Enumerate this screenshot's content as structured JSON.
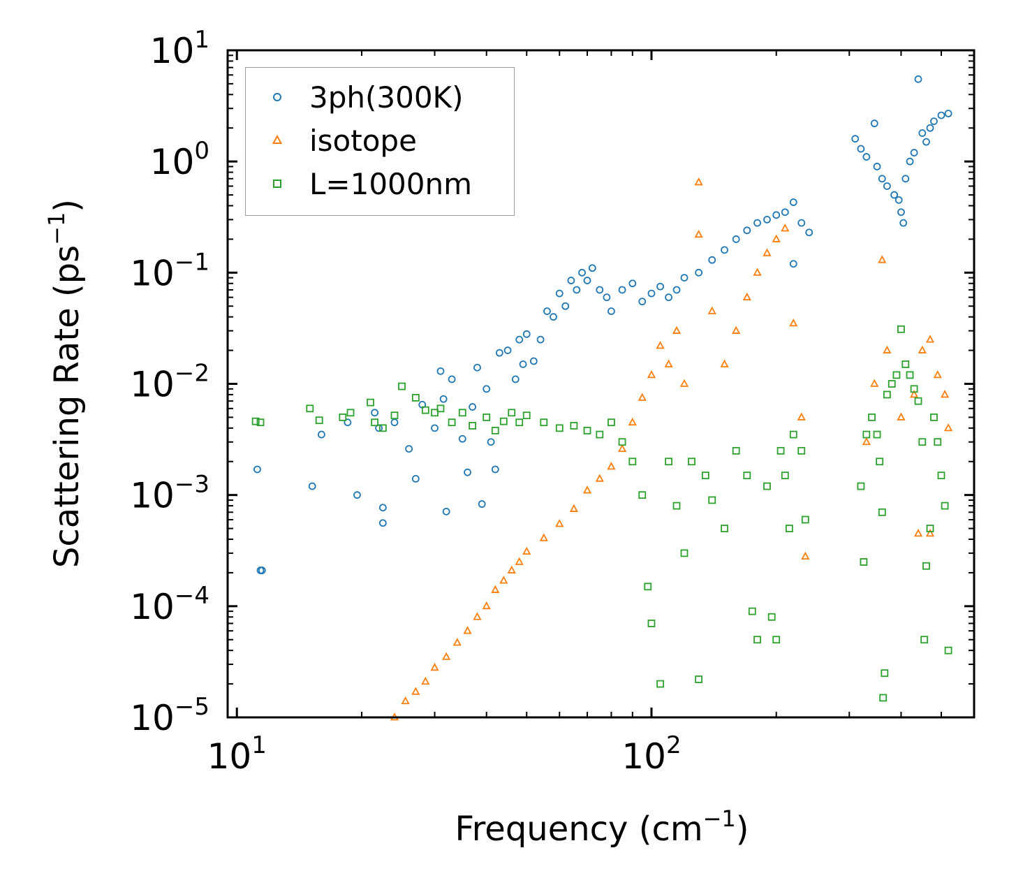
{
  "chart_data": {
    "type": "scatter",
    "title": "",
    "xlabel": "Frequency (cm",
    "xlabel_sup": "−1",
    "xlabel_tail": ")",
    "ylabel": "Scattering Rate (ps",
    "ylabel_sup": "−1",
    "ylabel_tail": ")",
    "x_scale": "log",
    "y_scale": "log",
    "xlim": [
      9.5,
      600
    ],
    "ylim": [
      1e-05,
      10
    ],
    "grid": false,
    "legend_position": "top-left",
    "x_ticks": [
      {
        "value": 10,
        "base": "10",
        "exp": "1"
      },
      {
        "value": 100,
        "base": "10",
        "exp": "2"
      }
    ],
    "y_ticks": [
      {
        "value": 10,
        "base": "10",
        "exp": "1"
      },
      {
        "value": 1,
        "base": "10",
        "exp": "0"
      },
      {
        "value": 0.1,
        "base": "10",
        "exp": "−1"
      },
      {
        "value": 0.01,
        "base": "10",
        "exp": "−2"
      },
      {
        "value": 0.001,
        "base": "10",
        "exp": "−3"
      },
      {
        "value": 0.0001,
        "base": "10",
        "exp": "−4"
      },
      {
        "value": 1e-05,
        "base": "10",
        "exp": "−5"
      }
    ],
    "series": [
      {
        "name": "3ph(300K)",
        "marker": "circle",
        "color": "#1f77b4",
        "points": [
          [
            11.2,
            0.0017
          ],
          [
            11.4,
            0.00021
          ],
          [
            11.5,
            0.00021
          ],
          [
            15.2,
            0.0012
          ],
          [
            16.0,
            0.0035
          ],
          [
            18.5,
            0.0045
          ],
          [
            19.5,
            0.001
          ],
          [
            21.5,
            0.0055
          ],
          [
            22.0,
            0.004
          ],
          [
            22.5,
            0.00077
          ],
          [
            22.5,
            0.00056
          ],
          [
            24.0,
            0.0045
          ],
          [
            26.0,
            0.0026
          ],
          [
            27.0,
            0.0014
          ],
          [
            28.0,
            0.0065
          ],
          [
            30.0,
            0.004
          ],
          [
            31.0,
            0.013
          ],
          [
            31.5,
            0.0073
          ],
          [
            32.0,
            0.00071
          ],
          [
            33.0,
            0.011
          ],
          [
            35.0,
            0.0032
          ],
          [
            36.0,
            0.0016
          ],
          [
            37.0,
            0.0062
          ],
          [
            38.0,
            0.014
          ],
          [
            39.0,
            0.00083
          ],
          [
            40.0,
            0.009
          ],
          [
            41.0,
            0.003
          ],
          [
            42.0,
            0.0017
          ],
          [
            43.0,
            0.019
          ],
          [
            45.0,
            0.02
          ],
          [
            47.0,
            0.011
          ],
          [
            48.0,
            0.025
          ],
          [
            49.0,
            0.015
          ],
          [
            50.0,
            0.028
          ],
          [
            52.0,
            0.016
          ],
          [
            54.0,
            0.025
          ],
          [
            56.0,
            0.045
          ],
          [
            58.0,
            0.04
          ],
          [
            60.0,
            0.065
          ],
          [
            62.0,
            0.05
          ],
          [
            64.0,
            0.085
          ],
          [
            66.0,
            0.07
          ],
          [
            68.0,
            0.1
          ],
          [
            70.0,
            0.085
          ],
          [
            72.0,
            0.11
          ],
          [
            75.0,
            0.07
          ],
          [
            78.0,
            0.06
          ],
          [
            80.0,
            0.045
          ],
          [
            85.0,
            0.07
          ],
          [
            90.0,
            0.08
          ],
          [
            95.0,
            0.055
          ],
          [
            100.0,
            0.065
          ],
          [
            105.0,
            0.075
          ],
          [
            110.0,
            0.06
          ],
          [
            115.0,
            0.07
          ],
          [
            120.0,
            0.09
          ],
          [
            130.0,
            0.1
          ],
          [
            140.0,
            0.13
          ],
          [
            150.0,
            0.16
          ],
          [
            160.0,
            0.2
          ],
          [
            170.0,
            0.24
          ],
          [
            180.0,
            0.28
          ],
          [
            190.0,
            0.3
          ],
          [
            200.0,
            0.33
          ],
          [
            210.0,
            0.35
          ],
          [
            220.0,
            0.43
          ],
          [
            230.0,
            0.28
          ],
          [
            240.0,
            0.23
          ],
          [
            220.0,
            0.12
          ],
          [
            310.0,
            1.6
          ],
          [
            320.0,
            1.3
          ],
          [
            330.0,
            1.1
          ],
          [
            345.0,
            2.2
          ],
          [
            350.0,
            0.9
          ],
          [
            360.0,
            0.7
          ],
          [
            370.0,
            0.6
          ],
          [
            385.0,
            0.5
          ],
          [
            395.0,
            0.45
          ],
          [
            400.0,
            0.35
          ],
          [
            405.0,
            0.28
          ],
          [
            410.0,
            0.7
          ],
          [
            420.0,
            1.0
          ],
          [
            430.0,
            1.2
          ],
          [
            440.0,
            5.5
          ],
          [
            450.0,
            1.8
          ],
          [
            460.0,
            1.5
          ],
          [
            470.0,
            2.0
          ],
          [
            480.0,
            2.3
          ],
          [
            500.0,
            2.6
          ],
          [
            520.0,
            2.7
          ]
        ]
      },
      {
        "name": "isotope",
        "marker": "triangle",
        "color": "#ff7f0e",
        "points": [
          [
            24.0,
            1e-05
          ],
          [
            25.5,
            1.4e-05
          ],
          [
            27.0,
            1.7e-05
          ],
          [
            28.5,
            2.1e-05
          ],
          [
            30.0,
            2.8e-05
          ],
          [
            32.0,
            3.5e-05
          ],
          [
            34.0,
            4.7e-05
          ],
          [
            36.0,
            6e-05
          ],
          [
            38.0,
            8e-05
          ],
          [
            40.0,
            0.0001
          ],
          [
            42.0,
            0.00014
          ],
          [
            44.0,
            0.00017
          ],
          [
            46.0,
            0.00021
          ],
          [
            48.0,
            0.00025
          ],
          [
            50.0,
            0.00031
          ],
          [
            55.0,
            0.00041
          ],
          [
            60.0,
            0.00055
          ],
          [
            65.0,
            0.00075
          ],
          [
            70.0,
            0.0011
          ],
          [
            75.0,
            0.0014
          ],
          [
            80.0,
            0.0018
          ],
          [
            85.0,
            0.0026
          ],
          [
            90.0,
            0.0045
          ],
          [
            95.0,
            0.0075
          ],
          [
            100.0,
            0.012
          ],
          [
            105.0,
            0.022
          ],
          [
            110.0,
            0.015
          ],
          [
            115.0,
            0.03
          ],
          [
            120.0,
            0.01
          ],
          [
            130.0,
            0.65
          ],
          [
            130.0,
            0.22
          ],
          [
            140.0,
            0.045
          ],
          [
            150.0,
            0.015
          ],
          [
            160.0,
            0.03
          ],
          [
            170.0,
            0.06
          ],
          [
            180.0,
            0.1
          ],
          [
            190.0,
            0.15
          ],
          [
            200.0,
            0.2
          ],
          [
            210.0,
            0.25
          ],
          [
            220.0,
            0.035
          ],
          [
            230.0,
            0.005
          ],
          [
            235.0,
            0.00028
          ],
          [
            330.0,
            0.003
          ],
          [
            345.0,
            0.01
          ],
          [
            360.0,
            0.13
          ],
          [
            370.0,
            0.02
          ],
          [
            400.0,
            0.005
          ],
          [
            430.0,
            0.008
          ],
          [
            450.0,
            0.02
          ],
          [
            470.0,
            0.025
          ],
          [
            490.0,
            0.012
          ],
          [
            510.0,
            0.008
          ],
          [
            520.0,
            0.004
          ],
          [
            440.0,
            0.00045
          ],
          [
            470.0,
            0.00045
          ]
        ]
      },
      {
        "name": "L=1000nm",
        "marker": "square",
        "color": "#2ca02c",
        "points": [
          [
            11.1,
            0.0046
          ],
          [
            11.4,
            0.0045
          ],
          [
            15.0,
            0.006
          ],
          [
            15.8,
            0.0047
          ],
          [
            18.0,
            0.005
          ],
          [
            18.8,
            0.0055
          ],
          [
            21.0,
            0.0068
          ],
          [
            21.5,
            0.0045
          ],
          [
            22.5,
            0.004
          ],
          [
            24.0,
            0.0052
          ],
          [
            25.0,
            0.0095
          ],
          [
            27.0,
            0.0075
          ],
          [
            28.5,
            0.0058
          ],
          [
            30.0,
            0.0055
          ],
          [
            31.0,
            0.006
          ],
          [
            33.0,
            0.0045
          ],
          [
            35.0,
            0.0055
          ],
          [
            37.0,
            0.0042
          ],
          [
            40.0,
            0.005
          ],
          [
            42.0,
            0.0038
          ],
          [
            44.0,
            0.0046
          ],
          [
            46.0,
            0.0055
          ],
          [
            48.0,
            0.0045
          ],
          [
            50.0,
            0.0052
          ],
          [
            55.0,
            0.0045
          ],
          [
            60.0,
            0.004
          ],
          [
            65.0,
            0.0042
          ],
          [
            70.0,
            0.0038
          ],
          [
            75.0,
            0.0035
          ],
          [
            80.0,
            0.0045
          ],
          [
            85.0,
            0.003
          ],
          [
            90.0,
            0.002
          ],
          [
            95.0,
            0.001
          ],
          [
            98.0,
            0.00015
          ],
          [
            100.0,
            7e-05
          ],
          [
            105.0,
            2e-05
          ],
          [
            110.0,
            0.002
          ],
          [
            115.0,
            0.0008
          ],
          [
            120.0,
            0.0003
          ],
          [
            125.0,
            0.002
          ],
          [
            130.0,
            2.2e-05
          ],
          [
            135.0,
            0.0015
          ],
          [
            140.0,
            0.0009
          ],
          [
            150.0,
            0.0005
          ],
          [
            160.0,
            0.0025
          ],
          [
            170.0,
            0.0015
          ],
          [
            175.0,
            9e-05
          ],
          [
            180.0,
            5e-05
          ],
          [
            190.0,
            0.0012
          ],
          [
            195.0,
            8e-05
          ],
          [
            200.0,
            5e-05
          ],
          [
            205.0,
            0.0025
          ],
          [
            210.0,
            0.0015
          ],
          [
            215.0,
            0.0005
          ],
          [
            220.0,
            0.0035
          ],
          [
            230.0,
            0.0025
          ],
          [
            235.0,
            0.0006
          ],
          [
            320.0,
            0.0012
          ],
          [
            325.0,
            0.00025
          ],
          [
            330.0,
            0.0035
          ],
          [
            340.0,
            0.005
          ],
          [
            350.0,
            0.0035
          ],
          [
            355.0,
            0.002
          ],
          [
            360.0,
            0.0007
          ],
          [
            362.0,
            1.5e-05
          ],
          [
            365.0,
            2.5e-05
          ],
          [
            370.0,
            0.008
          ],
          [
            380.0,
            0.01
          ],
          [
            390.0,
            0.012
          ],
          [
            400.0,
            0.031
          ],
          [
            410.0,
            0.015
          ],
          [
            420.0,
            0.012
          ],
          [
            430.0,
            0.009
          ],
          [
            440.0,
            0.007
          ],
          [
            450.0,
            0.003
          ],
          [
            455.0,
            5e-05
          ],
          [
            460.0,
            0.00023
          ],
          [
            470.0,
            0.0005
          ],
          [
            480.0,
            0.005
          ],
          [
            490.0,
            0.003
          ],
          [
            500.0,
            0.0015
          ],
          [
            510.0,
            0.0008
          ],
          [
            520.0,
            4e-05
          ]
        ]
      }
    ]
  }
}
